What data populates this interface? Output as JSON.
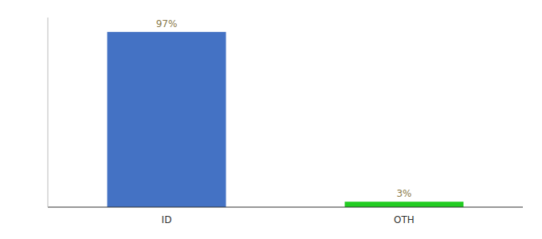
{
  "chart_data": {
    "type": "bar",
    "categories": [
      "ID",
      "OTH"
    ],
    "values": [
      97,
      3
    ],
    "value_labels": [
      "97%",
      "3%"
    ],
    "colors": [
      "#4472c4",
      "#22cc22"
    ],
    "ylim": [
      0,
      105
    ],
    "grid": false,
    "data_labels": true,
    "tick_labels": "x"
  }
}
